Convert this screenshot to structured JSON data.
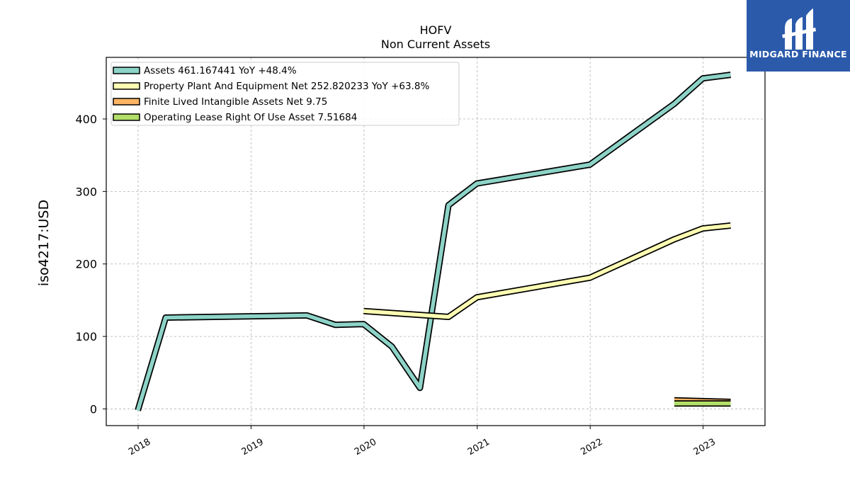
{
  "chart_data": {
    "type": "line",
    "title": "HOFV",
    "subtitle": "Non Current  Assets",
    "ylabel": "iso4217:USD",
    "xlabel": "",
    "xlim": [
      "2017-09-20",
      "2023-07-20"
    ],
    "ylim": [
      -23,
      485
    ],
    "x_ticks": [
      "2018",
      "2019",
      "2020",
      "2021",
      "2022",
      "2023"
    ],
    "y_ticks": [
      0,
      100,
      200,
      300,
      400
    ],
    "grid": true,
    "legend_position": "top-left",
    "series": [
      {
        "name": "Assets  461.167441 YoY +48.4%",
        "color": "#8dd3c7",
        "points": [
          [
            "2017-12-31",
            -2
          ],
          [
            "2018-03-31",
            126
          ],
          [
            "2019-06-30",
            129
          ],
          [
            "2019-09-30",
            116
          ],
          [
            "2019-12-31",
            117
          ],
          [
            "2020-03-31",
            86
          ],
          [
            "2020-06-30",
            29
          ],
          [
            "2020-09-30",
            281
          ],
          [
            "2020-12-31",
            311
          ],
          [
            "2021-12-31",
            337
          ],
          [
            "2022-09-30",
            421
          ],
          [
            "2022-12-31",
            456
          ],
          [
            "2023-03-31",
            461
          ]
        ]
      },
      {
        "name": "Property Plant And Equipment Net  252.820233 YoY +63.8%",
        "color": "#ffffb3",
        "points": [
          [
            "2019-12-31",
            135
          ],
          [
            "2020-09-30",
            127
          ],
          [
            "2020-12-31",
            154
          ],
          [
            "2021-12-31",
            181
          ],
          [
            "2022-09-30",
            234
          ],
          [
            "2022-12-31",
            249
          ],
          [
            "2023-03-31",
            253
          ]
        ]
      },
      {
        "name": "Finite Lived Intangible Assets Net  9.75",
        "color": "#fdb462",
        "points": [
          [
            "2022-09-30",
            12
          ],
          [
            "2023-03-31",
            9.75
          ]
        ]
      },
      {
        "name": "Operating Lease Right Of Use Asset  7.51684",
        "color": "#b3de69",
        "points": [
          [
            "2022-09-30",
            7.5
          ],
          [
            "2023-03-31",
            7.5
          ]
        ]
      }
    ]
  },
  "logo": {
    "text": "MIDGARD FINANCE",
    "background": "#2b5aab"
  }
}
